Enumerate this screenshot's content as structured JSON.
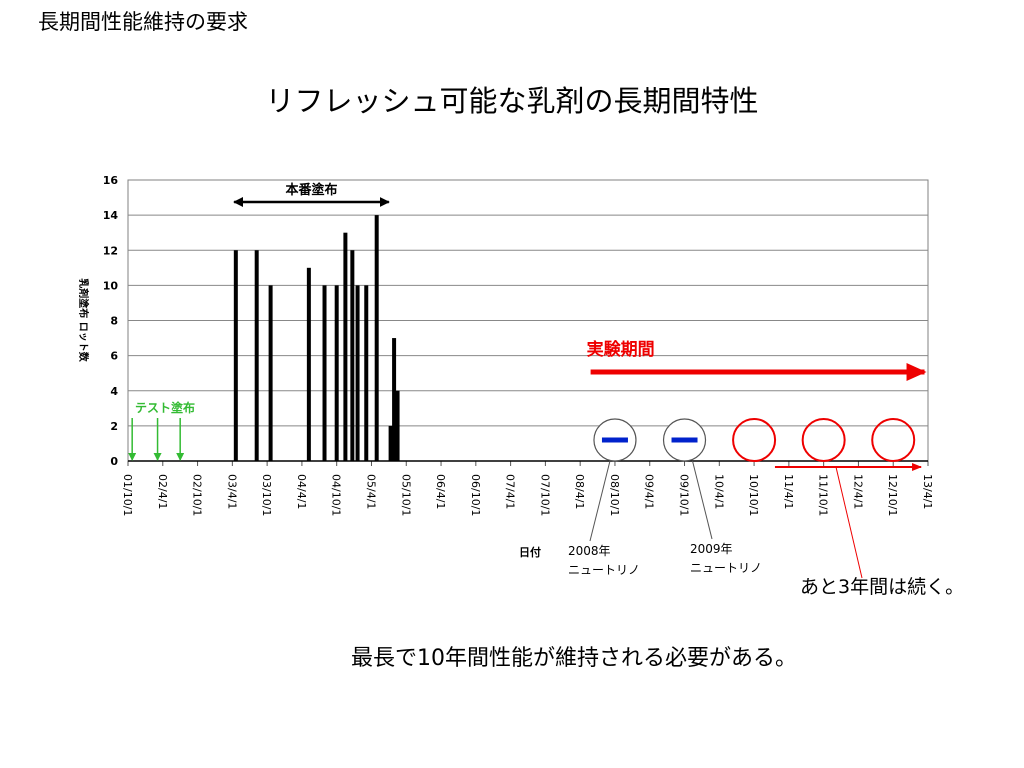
{
  "header": {
    "title": "長期間性能維持の要求"
  },
  "slide": {
    "title": "リフレッシュ可能な乳剤の長期間特性",
    "footer": "最長で10年間性能が維持される必要がある。"
  },
  "chart_data": {
    "type": "bar",
    "title": "",
    "xlabel": "日付",
    "ylabel": "乳剤塗布 ロット数",
    "ylim": [
      0,
      16
    ],
    "yticks": [
      0,
      2,
      4,
      6,
      8,
      10,
      12,
      14,
      16
    ],
    "grid": true,
    "xticks": [
      "01/10/1",
      "02/4/1",
      "02/10/1",
      "03/4/1",
      "03/10/1",
      "04/4/1",
      "04/10/1",
      "05/4/1",
      "05/10/1",
      "06/4/1",
      "06/10/1",
      "07/4/1",
      "07/10/1",
      "08/4/1",
      "08/10/1",
      "09/4/1",
      "09/10/1",
      "10/4/1",
      "10/10/1",
      "11/4/1",
      "11/10/1",
      "12/4/1",
      "12/10/1",
      "13/4/1"
    ],
    "bars": [
      {
        "x": 3.1,
        "value": 12
      },
      {
        "x": 3.7,
        "value": 12
      },
      {
        "x": 4.1,
        "value": 10
      },
      {
        "x": 5.2,
        "value": 11
      },
      {
        "x": 5.65,
        "value": 10
      },
      {
        "x": 6.0,
        "value": 10
      },
      {
        "x": 6.25,
        "value": 13
      },
      {
        "x": 6.45,
        "value": 12
      },
      {
        "x": 6.6,
        "value": 10
      },
      {
        "x": 6.85,
        "value": 10
      },
      {
        "x": 7.15,
        "value": 14
      },
      {
        "x": 7.55,
        "value": 2
      },
      {
        "x": 7.65,
        "value": 7
      },
      {
        "x": 7.75,
        "value": 4
      }
    ],
    "annotations": {
      "main_coating": {
        "label": "本番塗布",
        "from": 3.05,
        "to": 7.5
      },
      "test_coating": {
        "label": "テスト塗布",
        "color": "#33bb33",
        "positions": [
          0.12,
          0.85,
          1.5
        ]
      },
      "experiment_period": {
        "label": "実験期間",
        "color": "#ee0000",
        "from": 13.3,
        "to": 22.9
      },
      "neutrino_2008": {
        "label_year": "2008年",
        "label_name": "ニュートリノ",
        "x": 14.0
      },
      "neutrino_2009": {
        "label_year": "2009年",
        "label_name": "ニュートリノ",
        "x": 16.0
      },
      "future_runs": {
        "color": "#ee0000",
        "positions": [
          18.0,
          20.0,
          22.0
        ]
      },
      "remaining": {
        "label": "あと3年間は続く。",
        "from": 18.6,
        "to": 22.8
      }
    }
  }
}
